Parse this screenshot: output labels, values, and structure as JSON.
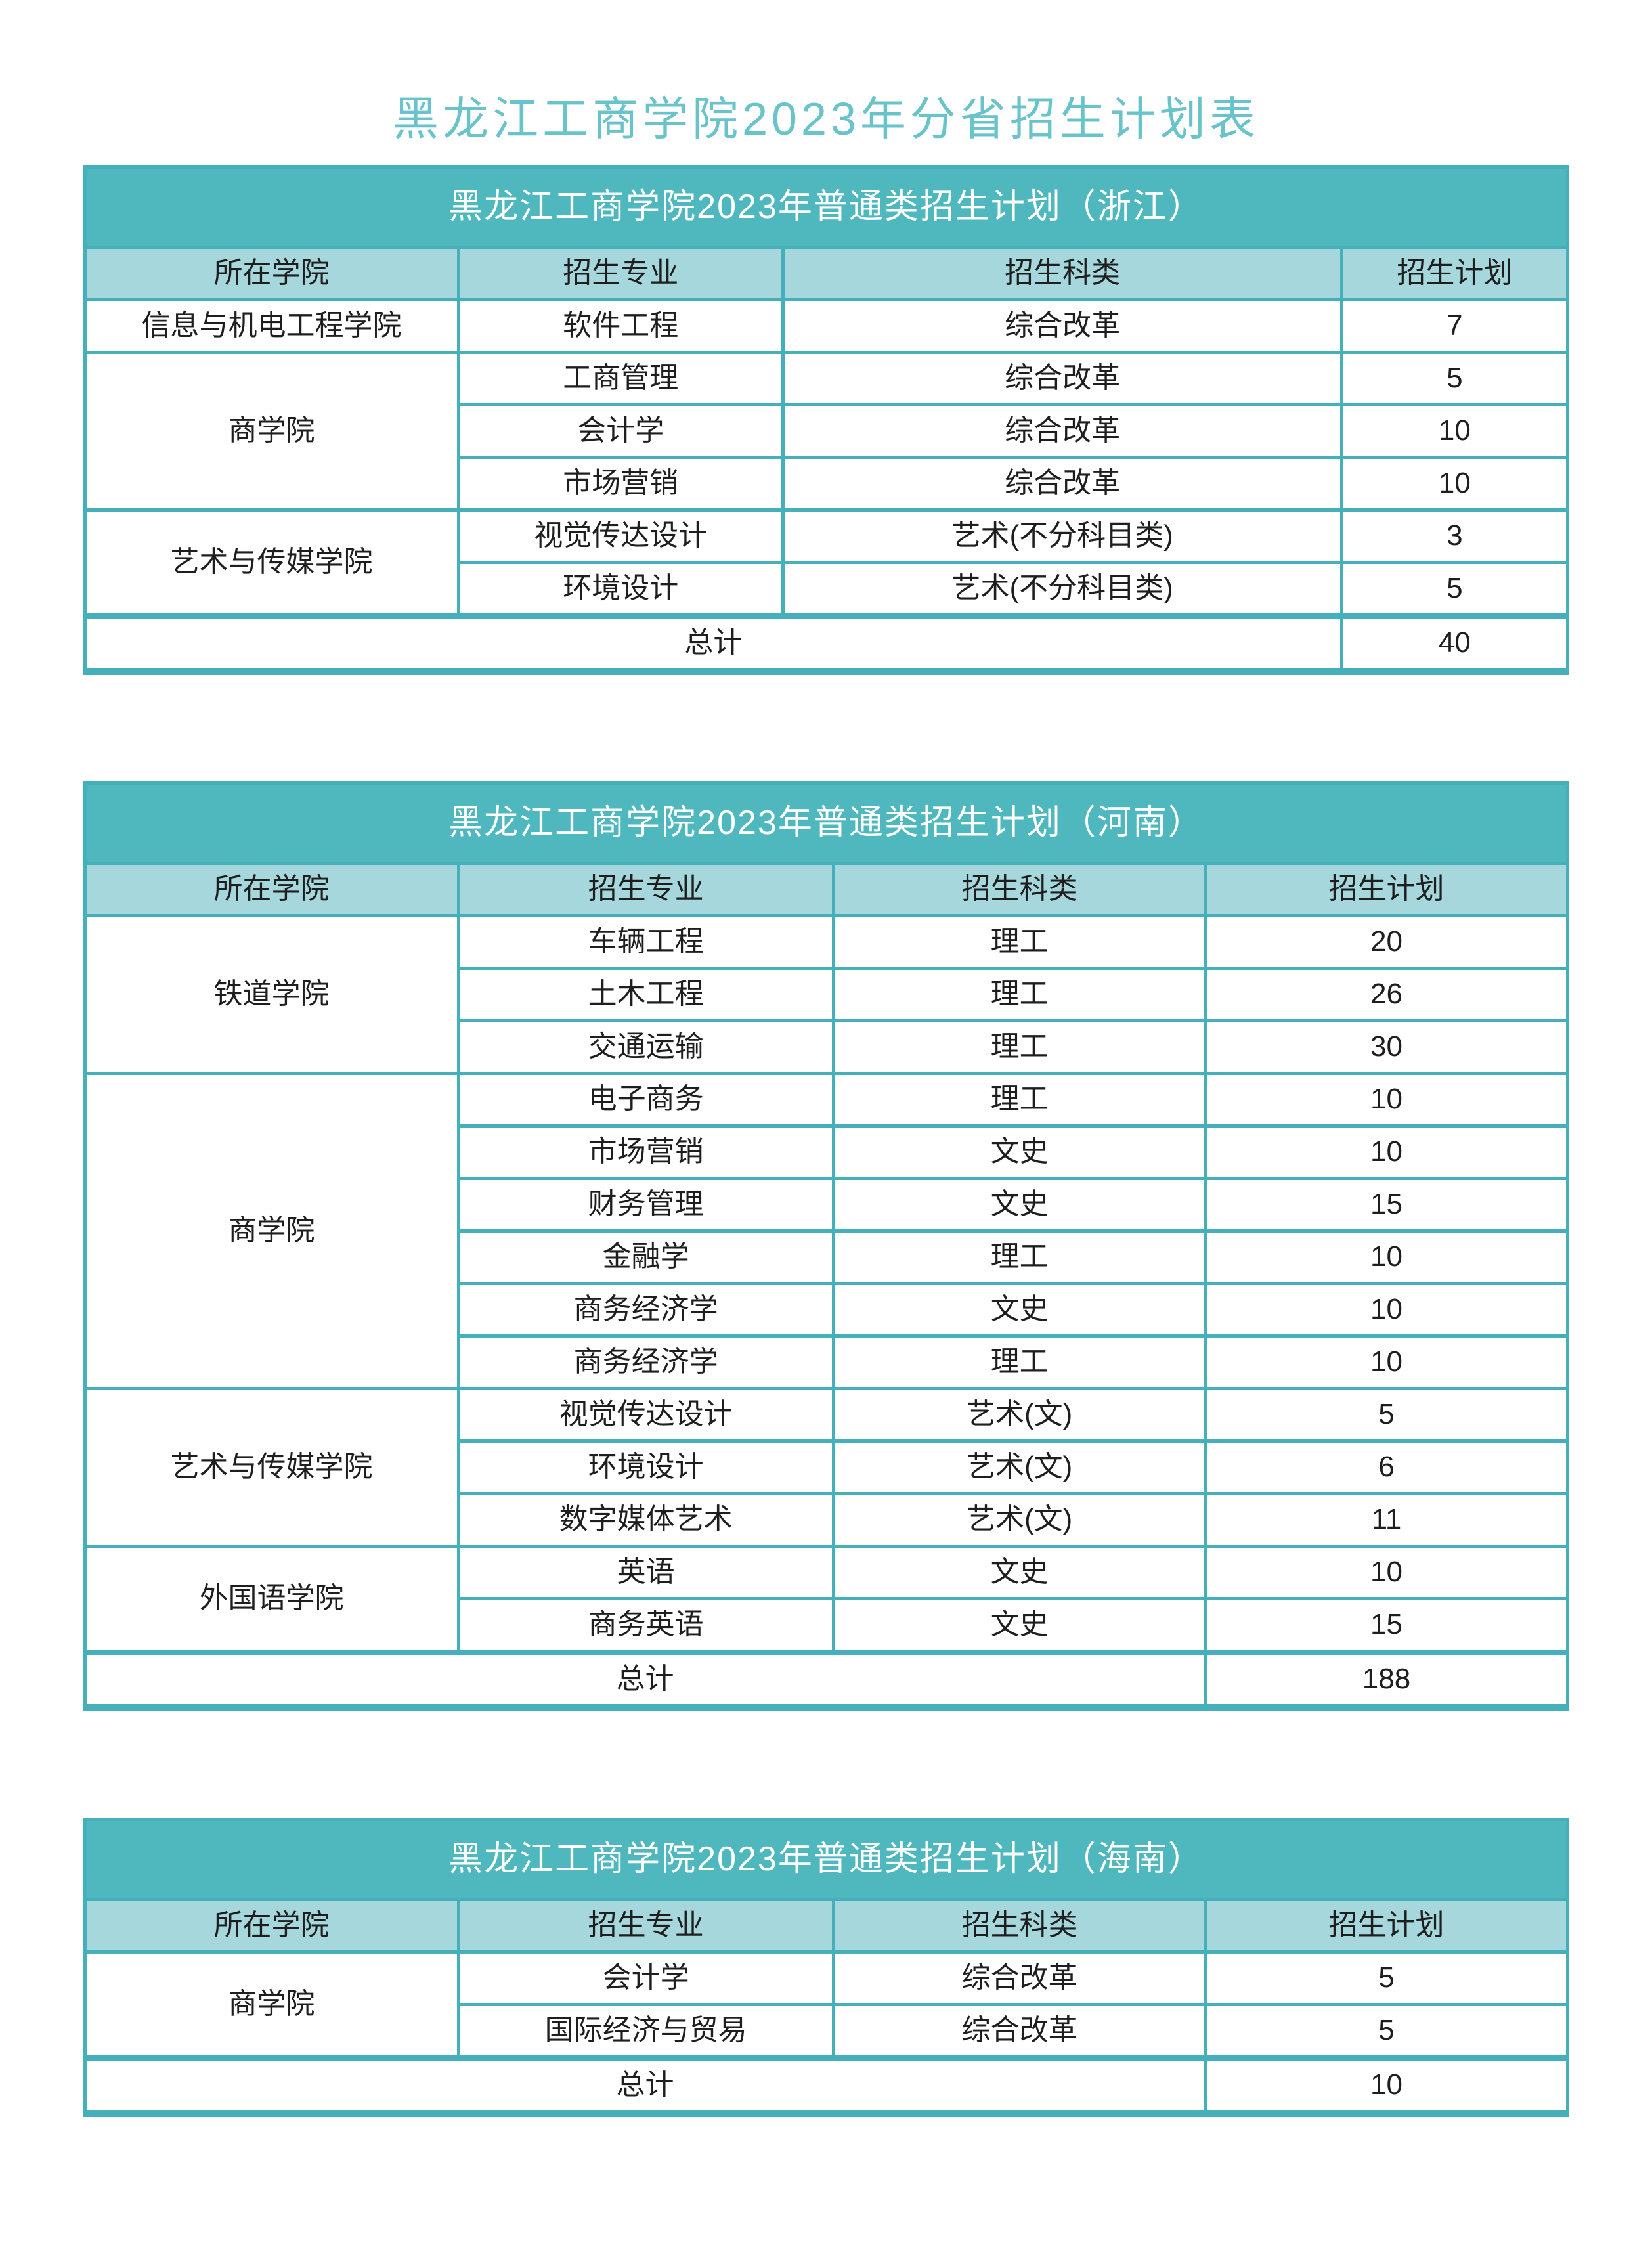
{
  "page_title": "黑龙江工商学院2023年分省招生计划表",
  "colors": {
    "page_title_text": "#69c3cb",
    "table_band_bg": "#4fb8bf",
    "table_band_text": "#ffffff",
    "header_row_bg": "#a6d7dc",
    "zebra_row_bg": "#ddeff2",
    "border": "#45b0ba",
    "cell_text": "#1e1e1e"
  },
  "tables": [
    {
      "title": "黑龙江工商学院2023年普通类招生计划（浙江）",
      "headers": [
        "所在学院",
        "招生专业",
        "招生科类",
        "招生计划"
      ],
      "rows": [
        {
          "college": "信息与机电工程学院",
          "rowspan": 1,
          "major": "软件工程",
          "category": "综合改革",
          "plan": "7",
          "shaded": false
        },
        {
          "college": "商学院",
          "rowspan": 3,
          "major": "工商管理",
          "category": "综合改革",
          "plan": "5",
          "shaded": true
        },
        {
          "major": "会计学",
          "category": "综合改革",
          "plan": "10",
          "shaded": false
        },
        {
          "major": "市场营销",
          "category": "综合改革",
          "plan": "10",
          "shaded": true
        },
        {
          "college": "艺术与传媒学院",
          "rowspan": 2,
          "major": "视觉传达设计",
          "category": "艺术(不分科目类)",
          "plan": "3",
          "shaded": false
        },
        {
          "major": "环境设计",
          "category": "艺术(不分科目类)",
          "plan": "5",
          "shaded": true
        }
      ],
      "total": {
        "label": "总计",
        "value": "40"
      }
    },
    {
      "title": "黑龙江工商学院2023年普通类招生计划（河南）",
      "headers": [
        "所在学院",
        "招生专业",
        "招生科类",
        "招生计划"
      ],
      "rows": [
        {
          "college": "铁道学院",
          "rowspan": 3,
          "major": "车辆工程",
          "category": "理工",
          "plan": "20",
          "shaded": false
        },
        {
          "major": "土木工程",
          "category": "理工",
          "plan": "26",
          "shaded": true
        },
        {
          "major": "交通运输",
          "category": "理工",
          "plan": "30",
          "shaded": false
        },
        {
          "college": "商学院",
          "rowspan": 6,
          "major": "电子商务",
          "category": "理工",
          "plan": "10",
          "shaded": true
        },
        {
          "major": "市场营销",
          "category": "文史",
          "plan": "10",
          "shaded": false
        },
        {
          "major": "财务管理",
          "category": "文史",
          "plan": "15",
          "shaded": true
        },
        {
          "major": "金融学",
          "category": "理工",
          "plan": "10",
          "shaded": false
        },
        {
          "major": "商务经济学",
          "category": "文史",
          "plan": "10",
          "shaded": true
        },
        {
          "major": "商务经济学",
          "category": "理工",
          "plan": "10",
          "shaded": false
        },
        {
          "college": "艺术与传媒学院",
          "rowspan": 3,
          "major": "视觉传达设计",
          "category": "艺术(文)",
          "plan": "5",
          "shaded": true
        },
        {
          "major": "环境设计",
          "category": "艺术(文)",
          "plan": "6",
          "shaded": false
        },
        {
          "major": "数字媒体艺术",
          "category": "艺术(文)",
          "plan": "11",
          "shaded": true
        },
        {
          "college": "外国语学院",
          "rowspan": 2,
          "major": "英语",
          "category": "文史",
          "plan": "10",
          "shaded": false
        },
        {
          "major": "商务英语",
          "category": "文史",
          "plan": "15",
          "shaded": true
        }
      ],
      "total": {
        "label": "总计",
        "value": "188"
      }
    },
    {
      "title": "黑龙江工商学院2023年普通类招生计划（海南）",
      "headers": [
        "所在学院",
        "招生专业",
        "招生科类",
        "招生计划"
      ],
      "rows": [
        {
          "college": "商学院",
          "rowspan": 2,
          "major": "会计学",
          "category": "综合改革",
          "plan": "5",
          "shaded": false
        },
        {
          "major": "国际经济与贸易",
          "category": "综合改革",
          "plan": "5",
          "shaded": true
        }
      ],
      "total": {
        "label": "总计",
        "value": "10"
      }
    }
  ]
}
